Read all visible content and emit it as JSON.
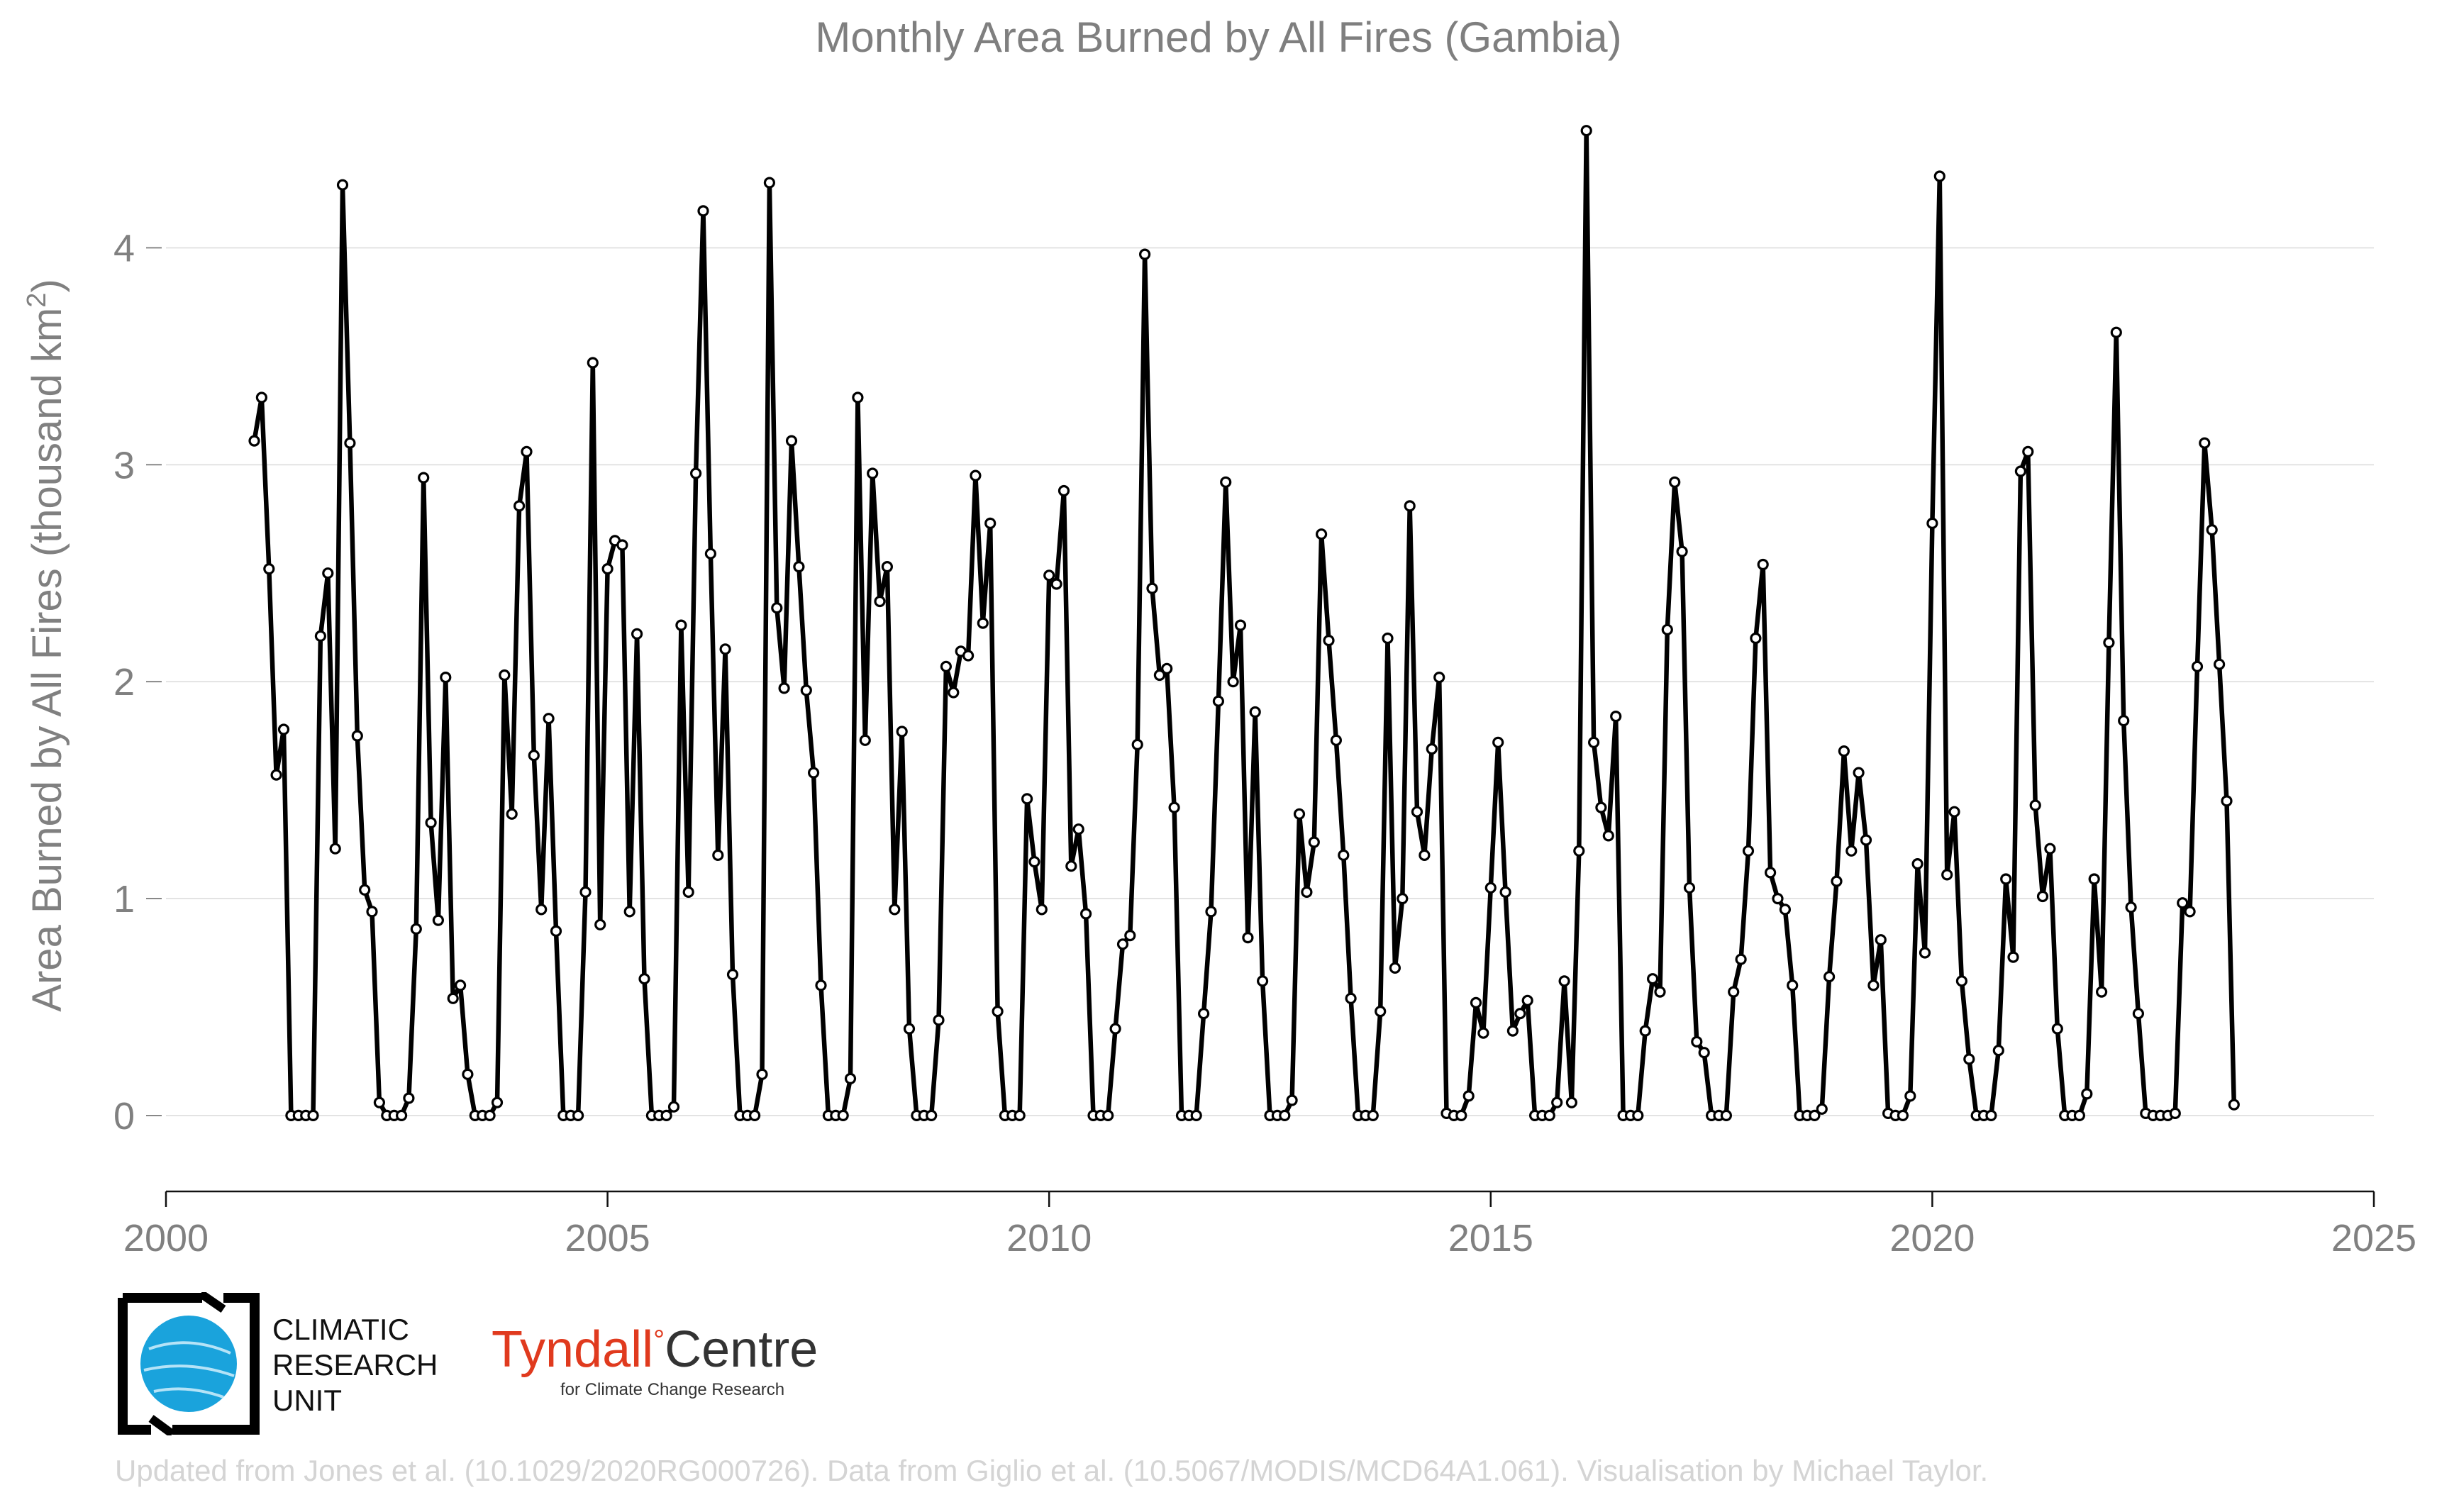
{
  "chart_data": {
    "type": "line",
    "title": "Monthly Area Burned by All Fires (Gambia)",
    "ylabel_main": "Area Burned by All Fires (thousand km",
    "ylabel_sup": "2",
    "ylabel_close": ")",
    "xlim": [
      2000,
      2025
    ],
    "ylim": [
      -0.35,
      4.75
    ],
    "xticks": [
      2000,
      2005,
      2010,
      2015,
      2020,
      2025
    ],
    "yticks": [
      0,
      1,
      2,
      3,
      4
    ],
    "grid": "horizontal",
    "series_start": {
      "year": 2001,
      "month": 1
    },
    "values": [
      3.11,
      3.31,
      2.52,
      1.57,
      1.78,
      0,
      0,
      0,
      0,
      2.21,
      2.5,
      1.23,
      4.29,
      3.1,
      1.75,
      1.04,
      0.94,
      0.06,
      0,
      0,
      0,
      0.08,
      0.86,
      2.94,
      1.35,
      0.9,
      2.02,
      0.54,
      0.6,
      0.19,
      0,
      0,
      0,
      0.06,
      2.03,
      1.39,
      2.81,
      3.06,
      1.66,
      0.95,
      1.83,
      0.85,
      0,
      0,
      0,
      1.03,
      3.47,
      0.88,
      2.52,
      2.65,
      2.63,
      0.94,
      2.22,
      0.63,
      0,
      0,
      0,
      0.04,
      2.26,
      1.03,
      2.96,
      4.17,
      2.59,
      1.2,
      2.15,
      0.65,
      0,
      0,
      0,
      0.19,
      4.3,
      2.34,
      1.97,
      3.11,
      2.53,
      1.96,
      1.58,
      0.6,
      0,
      0,
      0,
      0.17,
      3.31,
      1.73,
      2.96,
      2.37,
      2.53,
      0.95,
      1.77,
      0.4,
      0,
      0,
      0,
      0.44,
      2.07,
      1.95,
      2.14,
      2.12,
      2.95,
      2.27,
      2.73,
      0.48,
      0,
      0,
      0,
      1.46,
      1.17,
      0.95,
      2.49,
      2.45,
      2.88,
      1.15,
      1.32,
      0.93,
      0,
      0,
      0,
      0.4,
      0.79,
      0.83,
      1.71,
      3.97,
      2.43,
      2.03,
      2.06,
      1.42,
      0,
      0,
      0,
      0.47,
      0.94,
      1.91,
      2.92,
      2.0,
      2.26,
      0.82,
      1.86,
      0.62,
      0,
      0,
      0,
      0.07,
      1.39,
      1.03,
      1.26,
      2.68,
      2.19,
      1.73,
      1.2,
      0.54,
      0,
      0,
      0,
      0.48,
      2.2,
      0.68,
      1.0,
      2.81,
      1.4,
      1.2,
      1.69,
      2.02,
      0.01,
      0,
      0,
      0.09,
      0.52,
      0.38,
      1.05,
      1.72,
      1.03,
      0.39,
      0.47,
      0.53,
      0,
      0,
      0,
      0.06,
      0.62,
      0.06,
      1.22,
      4.54,
      1.72,
      1.42,
      1.29,
      1.84,
      0,
      0,
      0,
      0.39,
      0.63,
      0.57,
      2.24,
      2.92,
      2.6,
      1.05,
      0.34,
      0.29,
      0,
      0,
      0,
      0.57,
      0.72,
      1.22,
      2.2,
      2.54,
      1.12,
      1.0,
      0.95,
      0.6,
      0,
      0,
      0,
      0.03,
      0.64,
      1.08,
      1.68,
      1.22,
      1.58,
      1.27,
      0.6,
      0.81,
      0.01,
      0,
      0,
      0.09,
      1.16,
      0.75,
      2.73,
      4.33,
      1.11,
      1.4,
      0.62,
      0.26,
      0,
      0,
      0,
      0.3,
      1.09,
      0.73,
      2.97,
      3.06,
      1.43,
      1.01,
      1.23,
      0.4,
      0,
      0,
      0,
      0.1,
      1.09,
      0.57,
      2.18,
      3.61,
      1.82,
      0.96,
      0.47,
      0.01,
      0,
      0,
      0,
      0.01,
      0.98,
      0.94,
      2.07,
      3.1,
      2.7,
      2.08,
      1.45,
      0.05
    ]
  },
  "logos": {
    "cru_line1": "CLIMATIC",
    "cru_line2": "RESEARCH",
    "cru_line3": "UNIT",
    "tyndall_main": "Tyndall",
    "tyndall_degree": "°",
    "tyndall_rest": "Centre",
    "tyndall_sub": "for Climate Change Research"
  },
  "credit": "Updated from Jones et al. (10.1029/2020RG000726). Data from Giglio et al. (10.5067/MODIS/MCD64A1.061). Visualisation by Michael Taylor.",
  "colors": {
    "line": "#000000",
    "marker_fill": "#ffffff",
    "grid": "#e3e3e3",
    "text": "#808080",
    "tyndall_red": "#e03a1e",
    "cru_blue": "#1aa3dc"
  }
}
